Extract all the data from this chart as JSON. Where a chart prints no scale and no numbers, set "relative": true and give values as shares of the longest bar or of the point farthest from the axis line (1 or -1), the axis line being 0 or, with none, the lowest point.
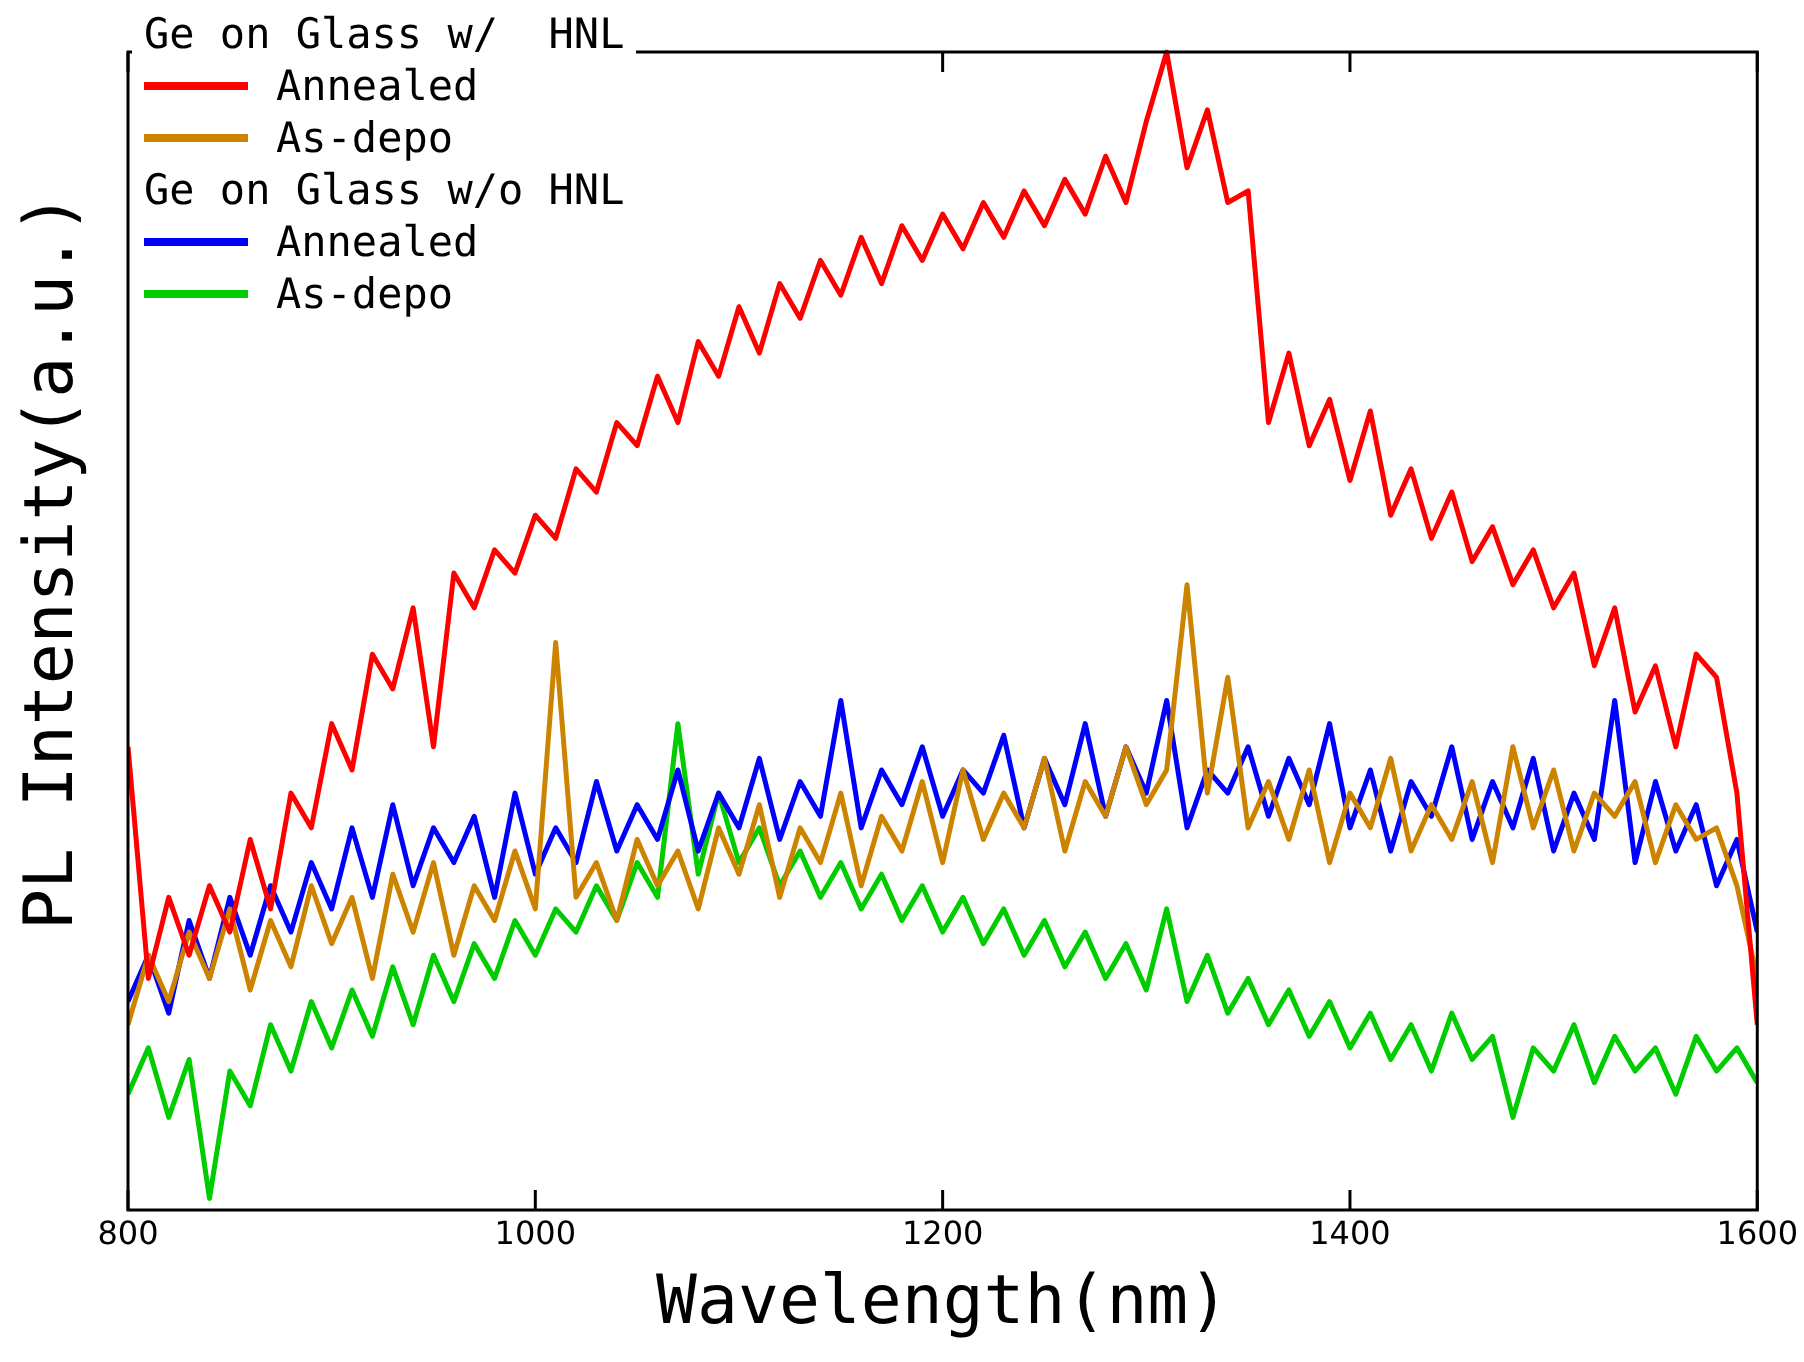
{
  "chart_data": {
    "type": "line",
    "xlabel": "Wavelength(nm)",
    "ylabel": "PL Intensity(a.u.)",
    "relative": true,
    "xlim": [
      800,
      1600
    ],
    "xticks": [
      800,
      1000,
      1200,
      1400,
      1600
    ],
    "grid": false,
    "legend": "top left",
    "marker": "none",
    "line_style": "solid",
    "annotations": [
      "Ge on Glass w/  HNL",
      "Ge on Glass w/o HNL"
    ],
    "x": [
      800,
      810,
      820,
      830,
      840,
      850,
      860,
      870,
      880,
      890,
      900,
      910,
      920,
      930,
      940,
      950,
      960,
      970,
      980,
      990,
      1000,
      1010,
      1020,
      1030,
      1040,
      1050,
      1060,
      1070,
      1080,
      1090,
      1100,
      1110,
      1120,
      1130,
      1140,
      1150,
      1160,
      1170,
      1180,
      1190,
      1200,
      1210,
      1220,
      1230,
      1240,
      1250,
      1260,
      1270,
      1280,
      1290,
      1300,
      1310,
      1320,
      1330,
      1340,
      1350,
      1360,
      1370,
      1380,
      1390,
      1400,
      1410,
      1420,
      1430,
      1440,
      1450,
      1460,
      1470,
      1480,
      1490,
      1500,
      1510,
      1520,
      1530,
      1540,
      1550,
      1560,
      1570,
      1580,
      1590,
      1600
    ],
    "series": [
      {
        "name": "Annealed",
        "color": "#ff0000",
        "values": [
          0.4,
          0.2,
          0.27,
          0.22,
          0.28,
          0.24,
          0.32,
          0.26,
          0.36,
          0.33,
          0.42,
          0.38,
          0.48,
          0.45,
          0.52,
          0.4,
          0.55,
          0.52,
          0.57,
          0.55,
          0.6,
          0.58,
          0.64,
          0.62,
          0.68,
          0.66,
          0.72,
          0.68,
          0.75,
          0.72,
          0.78,
          0.74,
          0.8,
          0.77,
          0.82,
          0.79,
          0.84,
          0.8,
          0.85,
          0.82,
          0.86,
          0.83,
          0.87,
          0.84,
          0.88,
          0.85,
          0.89,
          0.86,
          0.91,
          0.87,
          0.94,
          1.0,
          0.9,
          0.95,
          0.87,
          0.88,
          0.68,
          0.74,
          0.66,
          0.7,
          0.63,
          0.69,
          0.6,
          0.64,
          0.58,
          0.62,
          0.56,
          0.59,
          0.54,
          0.57,
          0.52,
          0.55,
          0.47,
          0.52,
          0.43,
          0.47,
          0.4,
          0.48,
          0.46,
          0.36,
          0.16
        ]
      },
      {
        "name": "As-depo",
        "color": "#cc8400",
        "values": [
          0.16,
          0.22,
          0.18,
          0.24,
          0.2,
          0.26,
          0.19,
          0.25,
          0.21,
          0.28,
          0.23,
          0.27,
          0.2,
          0.29,
          0.24,
          0.3,
          0.22,
          0.28,
          0.25,
          0.31,
          0.26,
          0.49,
          0.27,
          0.3,
          0.25,
          0.32,
          0.28,
          0.31,
          0.26,
          0.33,
          0.29,
          0.35,
          0.27,
          0.33,
          0.3,
          0.36,
          0.28,
          0.34,
          0.31,
          0.37,
          0.3,
          0.38,
          0.32,
          0.36,
          0.33,
          0.39,
          0.31,
          0.37,
          0.34,
          0.4,
          0.35,
          0.38,
          0.54,
          0.36,
          0.46,
          0.33,
          0.37,
          0.32,
          0.38,
          0.3,
          0.36,
          0.33,
          0.39,
          0.31,
          0.35,
          0.32,
          0.37,
          0.3,
          0.4,
          0.33,
          0.38,
          0.31,
          0.36,
          0.34,
          0.37,
          0.3,
          0.35,
          0.32,
          0.33,
          0.28,
          0.2
        ]
      },
      {
        "name": "Annealed",
        "color": "#0000ff",
        "values": [
          0.18,
          0.22,
          0.17,
          0.25,
          0.2,
          0.27,
          0.22,
          0.28,
          0.24,
          0.3,
          0.26,
          0.33,
          0.27,
          0.35,
          0.28,
          0.33,
          0.3,
          0.34,
          0.27,
          0.36,
          0.29,
          0.33,
          0.3,
          0.37,
          0.31,
          0.35,
          0.32,
          0.38,
          0.31,
          0.36,
          0.33,
          0.39,
          0.32,
          0.37,
          0.34,
          0.44,
          0.33,
          0.38,
          0.35,
          0.4,
          0.34,
          0.38,
          0.36,
          0.41,
          0.33,
          0.39,
          0.35,
          0.42,
          0.34,
          0.4,
          0.36,
          0.44,
          0.33,
          0.38,
          0.36,
          0.4,
          0.34,
          0.39,
          0.35,
          0.42,
          0.33,
          0.38,
          0.31,
          0.37,
          0.34,
          0.4,
          0.32,
          0.37,
          0.33,
          0.39,
          0.31,
          0.36,
          0.32,
          0.44,
          0.3,
          0.37,
          0.31,
          0.35,
          0.28,
          0.32,
          0.24
        ]
      },
      {
        "name": "As-depo",
        "color": "#00cc00",
        "values": [
          0.1,
          0.14,
          0.08,
          0.13,
          0.01,
          0.12,
          0.09,
          0.16,
          0.12,
          0.18,
          0.14,
          0.19,
          0.15,
          0.21,
          0.16,
          0.22,
          0.18,
          0.23,
          0.2,
          0.25,
          0.22,
          0.26,
          0.24,
          0.28,
          0.25,
          0.3,
          0.27,
          0.42,
          0.29,
          0.36,
          0.3,
          0.33,
          0.28,
          0.31,
          0.27,
          0.3,
          0.26,
          0.29,
          0.25,
          0.28,
          0.24,
          0.27,
          0.23,
          0.26,
          0.22,
          0.25,
          0.21,
          0.24,
          0.2,
          0.23,
          0.19,
          0.26,
          0.18,
          0.22,
          0.17,
          0.2,
          0.16,
          0.19,
          0.15,
          0.18,
          0.14,
          0.17,
          0.13,
          0.16,
          0.12,
          0.17,
          0.13,
          0.15,
          0.08,
          0.14,
          0.12,
          0.16,
          0.11,
          0.15,
          0.12,
          0.14,
          0.1,
          0.15,
          0.12,
          0.14,
          0.11
        ]
      }
    ]
  }
}
